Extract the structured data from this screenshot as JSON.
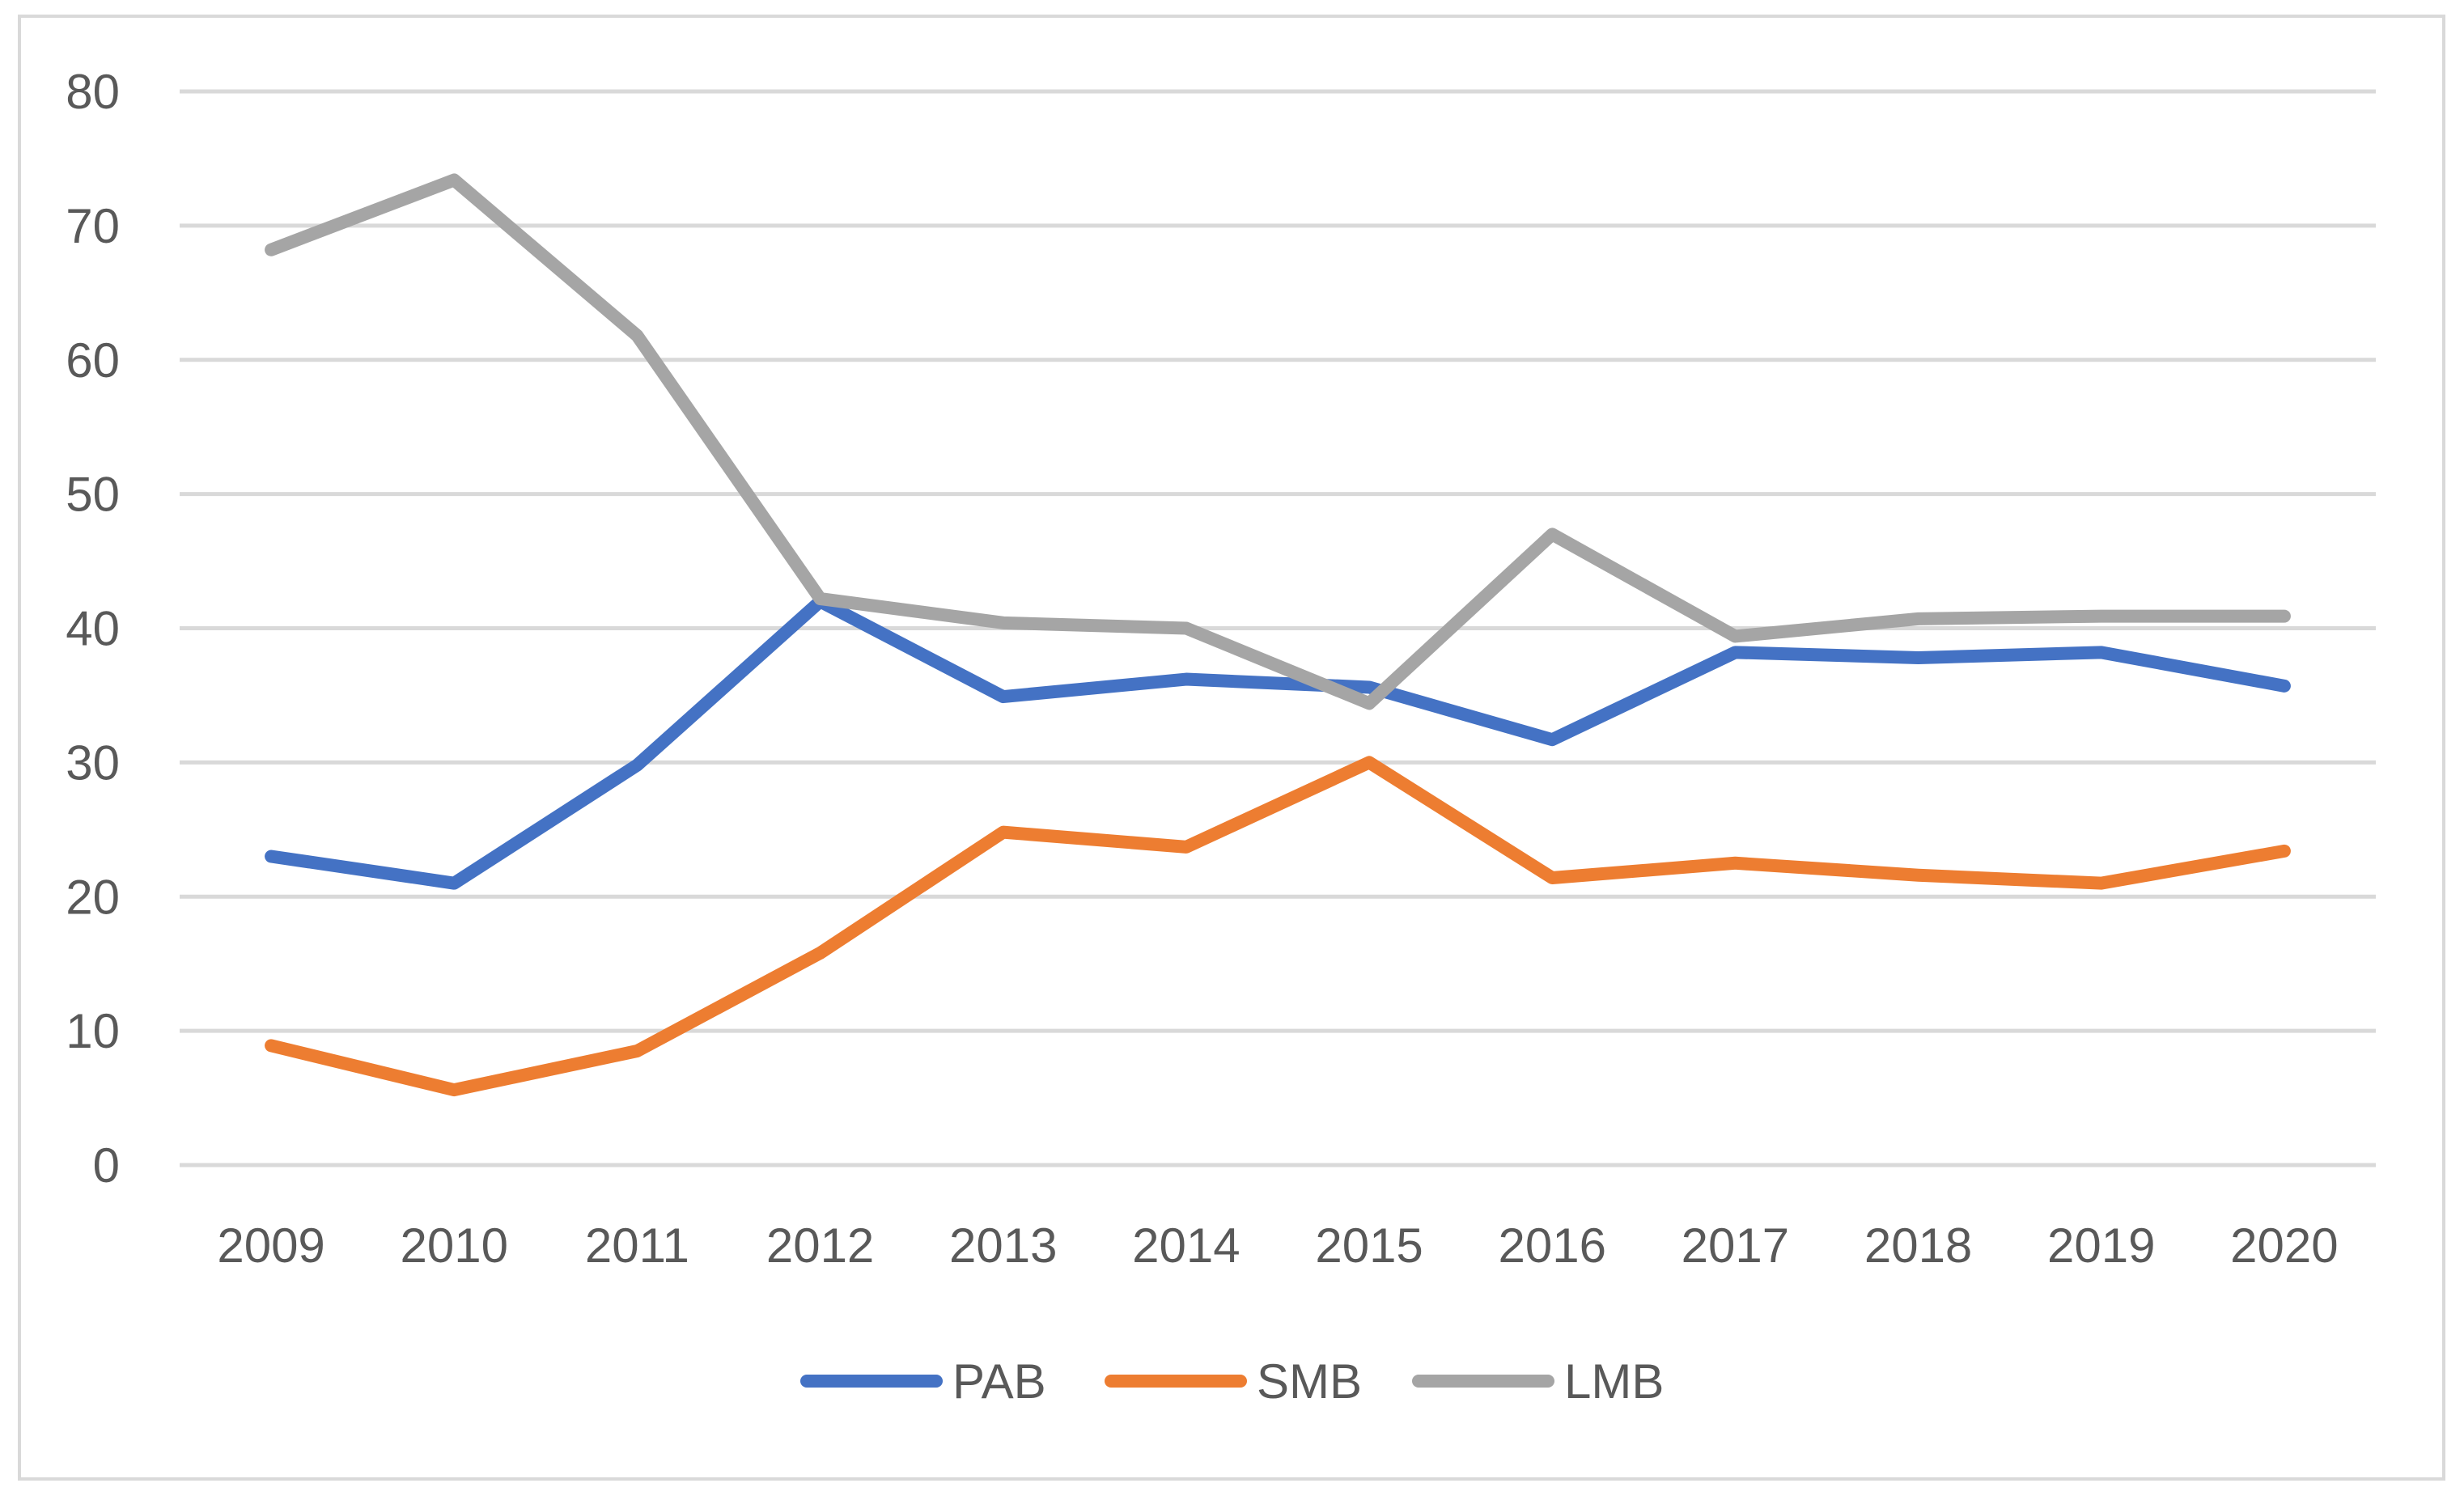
{
  "chart_data": {
    "type": "line",
    "title": "",
    "xlabel": "",
    "ylabel": "",
    "categories": [
      "2009",
      "2010",
      "2011",
      "2012",
      "2013",
      "2014",
      "2015",
      "2016",
      "2017",
      "2018",
      "2019",
      "2020"
    ],
    "y_ticks": [
      "0",
      "10",
      "20",
      "30",
      "40",
      "50",
      "60",
      "70",
      "80"
    ],
    "ylim": [
      0,
      80
    ],
    "grid": true,
    "legend_position": "bottom",
    "series": [
      {
        "name": "PAB",
        "color": "#4472c4",
        "values": [
          23.0,
          21.0,
          29.8,
          42.0,
          34.9,
          36.2,
          35.6,
          31.7,
          38.2,
          37.8,
          38.2,
          35.7
        ]
      },
      {
        "name": "SMB",
        "color": "#ed7d31",
        "values": [
          8.9,
          5.6,
          8.5,
          15.8,
          24.8,
          23.7,
          30.0,
          21.4,
          22.5,
          21.6,
          21.0,
          23.4
        ]
      },
      {
        "name": "LMB",
        "color": "#a5a5a5",
        "values": [
          68.2,
          73.4,
          61.8,
          42.2,
          40.4,
          40.0,
          34.4,
          47.0,
          39.4,
          40.7,
          40.9,
          40.9
        ]
      }
    ]
  }
}
